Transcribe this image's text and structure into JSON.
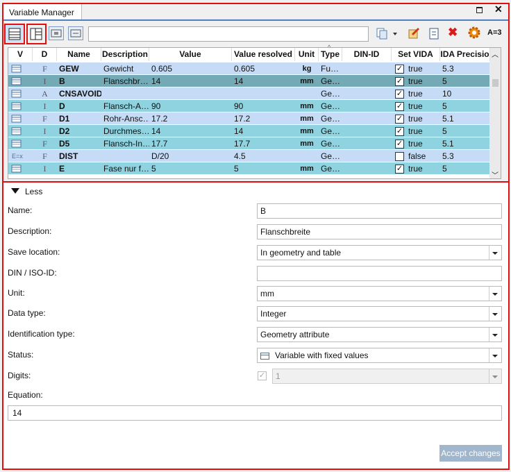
{
  "window": {
    "title": "Variable Manager"
  },
  "toolbar": {
    "formula_button": "A=3"
  },
  "table": {
    "columns": [
      "V",
      "D",
      "Name",
      "Description",
      "Value",
      "Value resolved",
      "Unit",
      "Type",
      "DIN-ID",
      "Set VIDA",
      "IDA Precisio"
    ],
    "rows": [
      {
        "color": "#c6dcf6",
        "cells": [
          null,
          "F",
          "GEW",
          "Gewicht",
          "0.605",
          "0.605",
          "kg",
          "Fu…",
          null,
          "true",
          "5.3"
        ]
      },
      {
        "color": "#74aab5",
        "cells": [
          null,
          "I",
          "B",
          "Flanschbr…",
          "14",
          "14",
          "mm",
          "Ge…",
          null,
          "true",
          "5"
        ]
      },
      {
        "color": "#c6dcf6",
        "cells": [
          null,
          "A",
          "CNSAVOID",
          null,
          null,
          null,
          null,
          "Ge…",
          null,
          "true",
          "10"
        ]
      },
      {
        "color": "#8ed3df",
        "cells": [
          null,
          "I",
          "D",
          "Flansch-A…",
          "90",
          "90",
          "mm",
          "Ge…",
          null,
          "true",
          "5"
        ]
      },
      {
        "color": "#c6dcf6",
        "cells": [
          null,
          "F",
          "D1",
          "Rohr-Ansc…",
          "17.2",
          "17.2",
          "mm",
          "Ge…",
          null,
          "true",
          "5.1"
        ]
      },
      {
        "color": "#8ed3df",
        "cells": [
          null,
          "I",
          "D2",
          "Durchmes…",
          "14",
          "14",
          "mm",
          "Ge…",
          null,
          "true",
          "5"
        ]
      },
      {
        "color": "#8ed3df",
        "cells": [
          null,
          "F",
          "D5",
          "Flansch-In…",
          "17.7",
          "17.7",
          "mm",
          "Ge…",
          null,
          "true",
          "5.1"
        ]
      },
      {
        "color": "#c6dcf6",
        "cells": [
          "E=x",
          "F",
          "DIST",
          null,
          "D/20",
          "4.5",
          null,
          "Ge…",
          null,
          "false",
          "5.3"
        ]
      },
      {
        "color": "#8ed3df",
        "cells": [
          null,
          "I",
          "E",
          "Fase nur f…",
          "5",
          "5",
          "mm",
          "Ge…",
          null,
          "true",
          "5"
        ]
      }
    ]
  },
  "details": {
    "toggle": "Less",
    "fields": [
      {
        "label": "Name:",
        "value": "B",
        "kind": "text"
      },
      {
        "label": "Description:",
        "value": "Flanschbreite",
        "kind": "text"
      },
      {
        "label": "Save location:",
        "value": "In geometry and table",
        "kind": "dropdown"
      },
      {
        "label": "DIN / ISO-ID:",
        "value": null,
        "kind": "text"
      },
      {
        "label": "Unit:",
        "value": "mm",
        "kind": "dropdown"
      },
      {
        "label": "Data type:",
        "value": "Integer",
        "kind": "dropdown"
      },
      {
        "label": "Identification type:",
        "value": "Geometry attribute",
        "kind": "dropdown"
      },
      {
        "label": "Status:",
        "value": "Variable with fixed values",
        "kind": "icon-dropdown"
      },
      {
        "label": "Digits:",
        "value": "1",
        "kind": "checked-disabled-dropdown"
      }
    ],
    "equation": {
      "label": "Equation:",
      "value": "14"
    },
    "button": "Accept changes"
  }
}
